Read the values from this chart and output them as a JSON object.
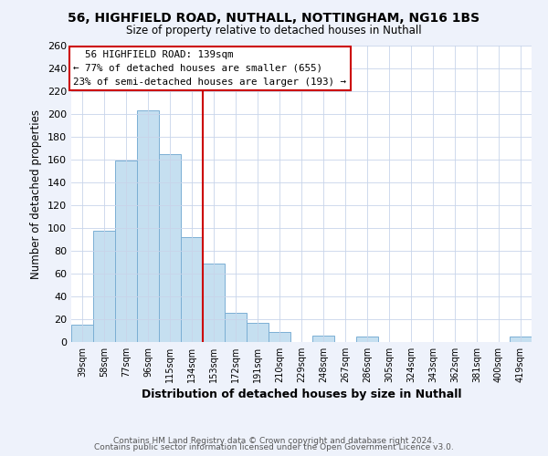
{
  "title1": "56, HIGHFIELD ROAD, NUTHALL, NOTTINGHAM, NG16 1BS",
  "title2": "Size of property relative to detached houses in Nuthall",
  "xlabel": "Distribution of detached houses by size in Nuthall",
  "ylabel": "Number of detached properties",
  "bar_labels": [
    "39sqm",
    "58sqm",
    "77sqm",
    "96sqm",
    "115sqm",
    "134sqm",
    "153sqm",
    "172sqm",
    "191sqm",
    "210sqm",
    "229sqm",
    "248sqm",
    "267sqm",
    "286sqm",
    "305sqm",
    "324sqm",
    "343sqm",
    "362sqm",
    "381sqm",
    "400sqm",
    "419sqm"
  ],
  "bar_values": [
    15,
    98,
    159,
    203,
    165,
    92,
    69,
    26,
    17,
    9,
    0,
    6,
    0,
    5,
    0,
    0,
    0,
    0,
    0,
    0,
    5
  ],
  "bar_color": "#c5dff0",
  "bar_edge_color": "#7bafd4",
  "vline_color": "#cc0000",
  "ylim": [
    0,
    260
  ],
  "yticks": [
    0,
    20,
    40,
    60,
    80,
    100,
    120,
    140,
    160,
    180,
    200,
    220,
    240,
    260
  ],
  "annotation_title": "56 HIGHFIELD ROAD: 139sqm",
  "annotation_line1": "← 77% of detached houses are smaller (655)",
  "annotation_line2": "23% of semi-detached houses are larger (193) →",
  "annotation_box_color": "#ffffff",
  "annotation_box_edge": "#cc0000",
  "footer1": "Contains HM Land Registry data © Crown copyright and database right 2024.",
  "footer2": "Contains public sector information licensed under the Open Government Licence v3.0.",
  "bg_color": "#eef2fb",
  "plot_bg_color": "#ffffff",
  "grid_color": "#c8d4ea"
}
